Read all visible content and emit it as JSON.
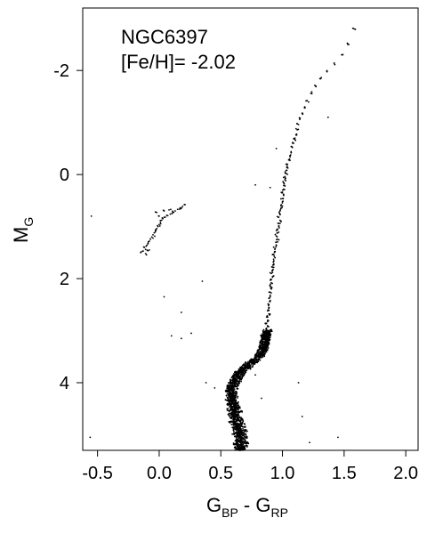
{
  "chart_data": {
    "type": "scatter",
    "title": "",
    "annotations": [
      "NGC6397",
      "[Fe/H]= -2.02"
    ],
    "xlabel": {
      "main": "G",
      "sub1": "BP",
      "mid": " - G",
      "sub2": "RP"
    },
    "ylabel": {
      "main": "M",
      "sub": "G"
    },
    "xlim": [
      -0.62,
      2.1
    ],
    "ylim": [
      5.3,
      -3.2
    ],
    "y_inverted": true,
    "grid": false,
    "point_color": "#000000",
    "xticks": [
      -0.5,
      0.0,
      0.5,
      1.0,
      1.5,
      2.0
    ],
    "xtick_labels": [
      "-0.5",
      "0.0",
      "0.5",
      "1.0",
      "1.5",
      "2.0"
    ],
    "yticks": [
      -2,
      0,
      2,
      4
    ],
    "ytick_labels": [
      "-2",
      "0",
      "2",
      "4"
    ],
    "series": [
      {
        "sequence": "main-sequence",
        "points": [
          [
            0.66,
            5.3
          ],
          [
            0.65,
            5.28
          ],
          [
            0.67,
            5.26
          ],
          [
            0.64,
            5.24
          ],
          [
            0.68,
            5.22
          ],
          [
            0.66,
            5.2
          ],
          [
            0.63,
            5.18
          ],
          [
            0.69,
            5.16
          ],
          [
            0.65,
            5.14
          ],
          [
            0.67,
            5.12
          ],
          [
            0.64,
            5.1
          ],
          [
            0.66,
            5.08
          ],
          [
            0.68,
            5.06
          ],
          [
            0.63,
            5.04
          ],
          [
            0.65,
            5.02
          ],
          [
            0.67,
            5.0
          ],
          [
            0.62,
            4.98
          ],
          [
            0.66,
            4.96
          ],
          [
            0.64,
            4.94
          ],
          [
            0.68,
            4.92
          ],
          [
            0.63,
            4.9
          ],
          [
            0.65,
            4.88
          ],
          [
            0.61,
            4.86
          ],
          [
            0.67,
            4.84
          ],
          [
            0.64,
            4.82
          ],
          [
            0.62,
            4.8
          ],
          [
            0.66,
            4.78
          ],
          [
            0.6,
            4.76
          ],
          [
            0.63,
            4.74
          ],
          [
            0.65,
            4.72
          ],
          [
            0.61,
            4.7
          ],
          [
            0.64,
            4.68
          ],
          [
            0.62,
            4.66
          ],
          [
            0.6,
            4.64
          ],
          [
            0.63,
            4.62
          ],
          [
            0.59,
            4.6
          ],
          [
            0.62,
            4.58
          ],
          [
            0.64,
            4.56
          ],
          [
            0.6,
            4.54
          ],
          [
            0.58,
            4.52
          ],
          [
            0.61,
            4.5
          ],
          [
            0.63,
            4.48
          ],
          [
            0.59,
            4.46
          ],
          [
            0.61,
            4.44
          ],
          [
            0.58,
            4.42
          ],
          [
            0.6,
            4.4
          ],
          [
            0.62,
            4.38
          ],
          [
            0.59,
            4.36
          ],
          [
            0.57,
            4.34
          ],
          [
            0.6,
            4.32
          ],
          [
            0.58,
            4.3
          ],
          [
            0.61,
            4.28
          ],
          [
            0.59,
            4.26
          ],
          [
            0.57,
            4.24
          ],
          [
            0.6,
            4.22
          ],
          [
            0.58,
            4.2
          ],
          [
            0.6,
            4.18
          ],
          [
            0.57,
            4.16
          ],
          [
            0.59,
            4.14
          ],
          [
            0.61,
            4.12
          ],
          [
            0.58,
            4.1
          ],
          [
            0.6,
            4.08
          ],
          [
            0.58,
            4.06
          ],
          [
            0.61,
            4.04
          ],
          [
            0.59,
            4.02
          ],
          [
            0.62,
            4.0
          ],
          [
            0.6,
            3.98
          ],
          [
            0.63,
            3.96
          ],
          [
            0.61,
            3.94
          ],
          [
            0.64,
            3.92
          ],
          [
            0.62,
            3.9
          ],
          [
            0.65,
            3.88
          ],
          [
            0.63,
            3.86
          ],
          [
            0.66,
            3.84
          ],
          [
            0.64,
            3.82
          ],
          [
            0.67,
            3.8
          ],
          [
            0.65,
            3.78
          ],
          [
            0.69,
            3.76
          ],
          [
            0.67,
            3.74
          ],
          [
            0.71,
            3.72
          ],
          [
            0.69,
            3.7
          ],
          [
            0.73,
            3.68
          ],
          [
            0.71,
            3.66
          ],
          [
            0.75,
            3.64
          ],
          [
            0.73,
            3.62
          ],
          [
            0.77,
            3.6
          ],
          [
            0.76,
            3.58
          ],
          [
            0.79,
            3.56
          ],
          [
            0.78,
            3.54
          ],
          [
            0.81,
            3.52
          ],
          [
            0.8,
            3.5
          ],
          [
            0.82,
            3.48
          ],
          [
            0.81,
            3.46
          ],
          [
            0.83,
            3.44
          ],
          [
            0.82,
            3.42
          ],
          [
            0.84,
            3.4
          ],
          [
            0.83,
            3.38
          ],
          [
            0.85,
            3.36
          ],
          [
            0.84,
            3.34
          ],
          [
            0.85,
            3.32
          ],
          [
            0.84,
            3.3
          ],
          [
            0.86,
            3.28
          ],
          [
            0.85,
            3.26
          ],
          [
            0.86,
            3.24
          ],
          [
            0.85,
            3.22
          ],
          [
            0.86,
            3.2
          ],
          [
            0.86,
            3.18
          ],
          [
            0.87,
            3.16
          ],
          [
            0.86,
            3.14
          ],
          [
            0.87,
            3.12
          ],
          [
            0.86,
            3.1
          ],
          [
            0.87,
            3.08
          ],
          [
            0.87,
            3.06
          ],
          [
            0.88,
            3.04
          ],
          [
            0.87,
            3.02
          ],
          [
            0.88,
            3.0
          ]
        ]
      },
      {
        "sequence": "red-giant-branch",
        "points": [
          [
            0.87,
            2.98
          ],
          [
            0.88,
            2.92
          ],
          [
            0.87,
            2.86
          ],
          [
            0.88,
            2.8
          ],
          [
            0.88,
            2.74
          ],
          [
            0.89,
            2.68
          ],
          [
            0.88,
            2.62
          ],
          [
            0.89,
            2.56
          ],
          [
            0.89,
            2.5
          ],
          [
            0.9,
            2.44
          ],
          [
            0.89,
            2.38
          ],
          [
            0.9,
            2.32
          ],
          [
            0.9,
            2.26
          ],
          [
            0.91,
            2.2
          ],
          [
            0.9,
            2.14
          ],
          [
            0.91,
            2.08
          ],
          [
            0.91,
            2.02
          ],
          [
            0.92,
            1.96
          ],
          [
            0.91,
            1.9
          ],
          [
            0.92,
            1.84
          ],
          [
            0.92,
            1.78
          ],
          [
            0.93,
            1.72
          ],
          [
            0.93,
            1.66
          ],
          [
            0.94,
            1.6
          ],
          [
            0.93,
            1.54
          ],
          [
            0.94,
            1.48
          ],
          [
            0.94,
            1.42
          ],
          [
            0.95,
            1.36
          ],
          [
            0.95,
            1.3
          ],
          [
            0.96,
            1.24
          ],
          [
            0.95,
            1.18
          ],
          [
            0.96,
            1.12
          ],
          [
            0.96,
            1.06
          ],
          [
            0.97,
            1.0
          ],
          [
            0.97,
            0.94
          ],
          [
            0.98,
            0.88
          ],
          [
            0.97,
            0.82
          ],
          [
            0.98,
            0.76
          ],
          [
            0.98,
            0.7
          ],
          [
            0.99,
            0.64
          ],
          [
            0.99,
            0.58
          ],
          [
            1.0,
            0.52
          ],
          [
            1.0,
            0.46
          ],
          [
            1.01,
            0.4
          ],
          [
            1.0,
            0.34
          ],
          [
            1.01,
            0.28
          ],
          [
            1.02,
            0.22
          ],
          [
            1.01,
            0.16
          ],
          [
            1.02,
            0.1
          ],
          [
            1.02,
            0.04
          ],
          [
            1.03,
            -0.02
          ],
          [
            1.03,
            -0.08
          ],
          [
            1.04,
            -0.14
          ],
          [
            1.04,
            -0.2
          ],
          [
            1.05,
            -0.28
          ],
          [
            1.06,
            -0.36
          ],
          [
            1.07,
            -0.44
          ],
          [
            1.08,
            -0.52
          ],
          [
            1.09,
            -0.6
          ],
          [
            1.1,
            -0.68
          ],
          [
            1.11,
            -0.76
          ],
          [
            1.12,
            -0.86
          ],
          [
            1.13,
            -0.96
          ],
          [
            1.14,
            -1.06
          ],
          [
            1.16,
            -1.18
          ],
          [
            1.18,
            -1.3
          ],
          [
            1.2,
            -1.42
          ],
          [
            1.23,
            -1.56
          ],
          [
            1.27,
            -1.7
          ],
          [
            1.31,
            -1.84
          ],
          [
            1.36,
            -1.98
          ],
          [
            1.42,
            -2.14
          ],
          [
            1.48,
            -2.3
          ],
          [
            1.53,
            -2.5
          ],
          [
            1.58,
            -2.8
          ]
        ]
      },
      {
        "sequence": "horizontal-branch",
        "points": [
          [
            -0.15,
            1.5
          ],
          [
            -0.13,
            1.47
          ],
          [
            -0.11,
            1.44
          ],
          [
            -0.12,
            1.4
          ],
          [
            -0.1,
            1.36
          ],
          [
            -0.09,
            1.32
          ],
          [
            -0.08,
            1.28
          ],
          [
            -0.07,
            1.24
          ],
          [
            -0.06,
            1.2
          ],
          [
            -0.05,
            1.16
          ],
          [
            -0.04,
            1.12
          ],
          [
            -0.03,
            1.08
          ],
          [
            -0.02,
            1.04
          ],
          [
            -0.01,
            1.0
          ],
          [
            0.0,
            0.96
          ],
          [
            0.01,
            0.92
          ],
          [
            0.02,
            0.88
          ],
          [
            0.03,
            0.85
          ],
          [
            0.05,
            0.82
          ],
          [
            0.07,
            0.79
          ],
          [
            0.09,
            0.76
          ],
          [
            0.11,
            0.73
          ],
          [
            0.13,
            0.7
          ],
          [
            0.15,
            0.67
          ],
          [
            0.17,
            0.64
          ],
          [
            0.19,
            0.61
          ],
          [
            0.21,
            0.58
          ],
          [
            -0.03,
            0.72
          ],
          [
            0.0,
            0.8
          ],
          [
            0.04,
            0.7
          ],
          [
            0.08,
            0.68
          ],
          [
            -0.08,
            1.45
          ],
          [
            -0.11,
            1.52
          ]
        ]
      },
      {
        "sequence": "field-stars",
        "points": [
          [
            -0.55,
            0.8
          ],
          [
            -0.56,
            5.05
          ],
          [
            0.35,
            2.05
          ],
          [
            0.04,
            2.35
          ],
          [
            0.18,
            2.65
          ],
          [
            0.1,
            3.1
          ],
          [
            0.26,
            3.05
          ],
          [
            0.18,
            3.15
          ],
          [
            0.38,
            4.0
          ],
          [
            0.45,
            4.1
          ],
          [
            0.78,
            3.85
          ],
          [
            0.83,
            4.3
          ],
          [
            1.13,
            4.0
          ],
          [
            1.16,
            4.65
          ],
          [
            1.22,
            5.15
          ],
          [
            1.45,
            5.05
          ],
          [
            0.78,
            0.2
          ],
          [
            0.9,
            0.25
          ],
          [
            0.95,
            -0.5
          ],
          [
            1.37,
            -1.1
          ],
          [
            1.1,
            -0.7
          ]
        ]
      }
    ]
  }
}
